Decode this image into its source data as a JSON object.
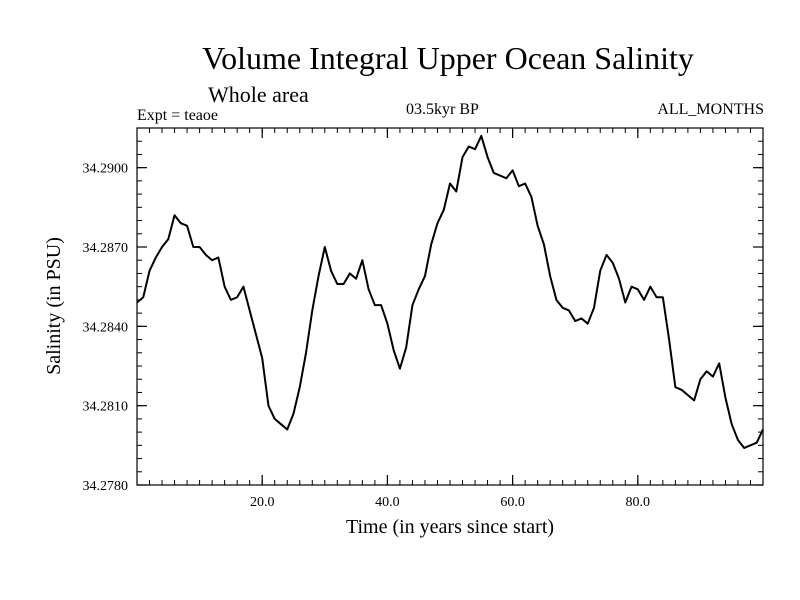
{
  "chart_data": {
    "type": "line",
    "title": "Volume Integral Upper Ocean Salinity",
    "subtitle": "Whole area",
    "experiment": "Expt = teaoe",
    "period": "03.5kyr BP",
    "months": "ALL_MONTHS",
    "xlabel": "Time (in years since start)",
    "ylabel": "Salinity (in PSU)",
    "xlim": [
      0,
      100
    ],
    "ylim": [
      34.278,
      34.2915
    ],
    "x_ticks": [
      20,
      40,
      60,
      80
    ],
    "x_tick_labels": [
      "20.0",
      "40.0",
      "60.0",
      "80.0"
    ],
    "y_ticks": [
      34.278,
      34.281,
      34.284,
      34.287,
      34.29
    ],
    "y_tick_labels": [
      "34.2780",
      "34.2810",
      "34.2840",
      "34.2870",
      "34.2900"
    ],
    "grid": false,
    "series": [
      {
        "name": "Salinity",
        "x": [
          0,
          1,
          2,
          3,
          4,
          5,
          6,
          7,
          8,
          9,
          10,
          11,
          12,
          13,
          14,
          15,
          16,
          17,
          18,
          19,
          20,
          21,
          22,
          23,
          24,
          25,
          26,
          27,
          28,
          29,
          30,
          31,
          32,
          33,
          34,
          35,
          36,
          37,
          38,
          39,
          40,
          41,
          42,
          43,
          44,
          45,
          46,
          47,
          48,
          49,
          50,
          51,
          52,
          53,
          54,
          55,
          56,
          57,
          58,
          59,
          60,
          61,
          62,
          63,
          64,
          65,
          66,
          67,
          68,
          69,
          70,
          71,
          72,
          73,
          74,
          75,
          76,
          77,
          78,
          79,
          80,
          81,
          82,
          83,
          84,
          85,
          86,
          87,
          88,
          89,
          90,
          91,
          92,
          93,
          94,
          95,
          96,
          97,
          98,
          99,
          100
        ],
        "values": [
          34.2849,
          34.2851,
          34.2861,
          34.2866,
          34.287,
          34.2873,
          34.2882,
          34.2879,
          34.2878,
          34.287,
          34.287,
          34.2867,
          34.2865,
          34.2866,
          34.2855,
          34.285,
          34.2851,
          34.2855,
          34.2846,
          34.2837,
          34.2828,
          34.281,
          34.2805,
          34.2803,
          34.2801,
          34.2807,
          34.2817,
          34.283,
          34.2846,
          34.2859,
          34.287,
          34.2861,
          34.2856,
          34.2856,
          34.286,
          34.2858,
          34.2865,
          34.2854,
          34.2848,
          34.2848,
          34.2841,
          34.2831,
          34.2824,
          34.2832,
          34.2848,
          34.2854,
          34.2859,
          34.2871,
          34.2879,
          34.2884,
          34.2894,
          34.2891,
          34.2904,
          34.2908,
          34.2907,
          34.2912,
          34.2904,
          34.2898,
          34.2897,
          34.2896,
          34.2899,
          34.2893,
          34.2894,
          34.2889,
          34.2878,
          34.2871,
          34.2859,
          34.285,
          34.2847,
          34.2846,
          34.2842,
          34.2843,
          34.2841,
          34.2847,
          34.2861,
          34.2867,
          34.2864,
          34.2858,
          34.2849,
          34.2855,
          34.2854,
          34.285,
          34.2855,
          34.2851,
          34.2851,
          34.2835,
          34.2817,
          34.2816,
          34.2814,
          34.2812,
          34.282,
          34.2823,
          34.2821,
          34.2826,
          34.2813,
          34.2803,
          34.2797,
          34.2794,
          34.2795,
          34.2796,
          34.2801
        ]
      }
    ]
  }
}
